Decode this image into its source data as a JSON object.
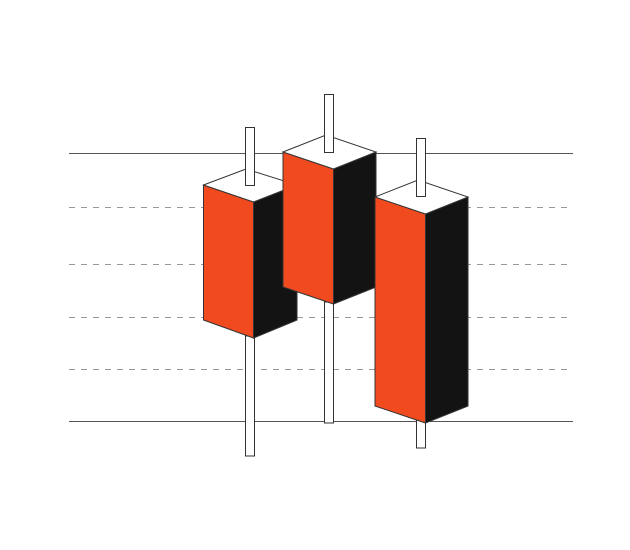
{
  "colors": {
    "background": "#FFFFFF",
    "front_face": "#F24A1F",
    "side_face": "#131313",
    "top_face": "#FFFFFF",
    "wick": "#FFFFFF",
    "outline": "#333333",
    "solid_rule": "#555555",
    "dashed_rule": "#9A9A9A"
  },
  "guide_lines": [
    {
      "style": "solid"
    },
    {
      "style": "dashed"
    },
    {
      "style": "dashed"
    },
    {
      "style": "dashed"
    },
    {
      "style": "dashed"
    },
    {
      "style": "solid"
    }
  ],
  "candles": [
    {
      "name": "candle-left"
    },
    {
      "name": "candle-middle"
    },
    {
      "name": "candle-right"
    }
  ]
}
